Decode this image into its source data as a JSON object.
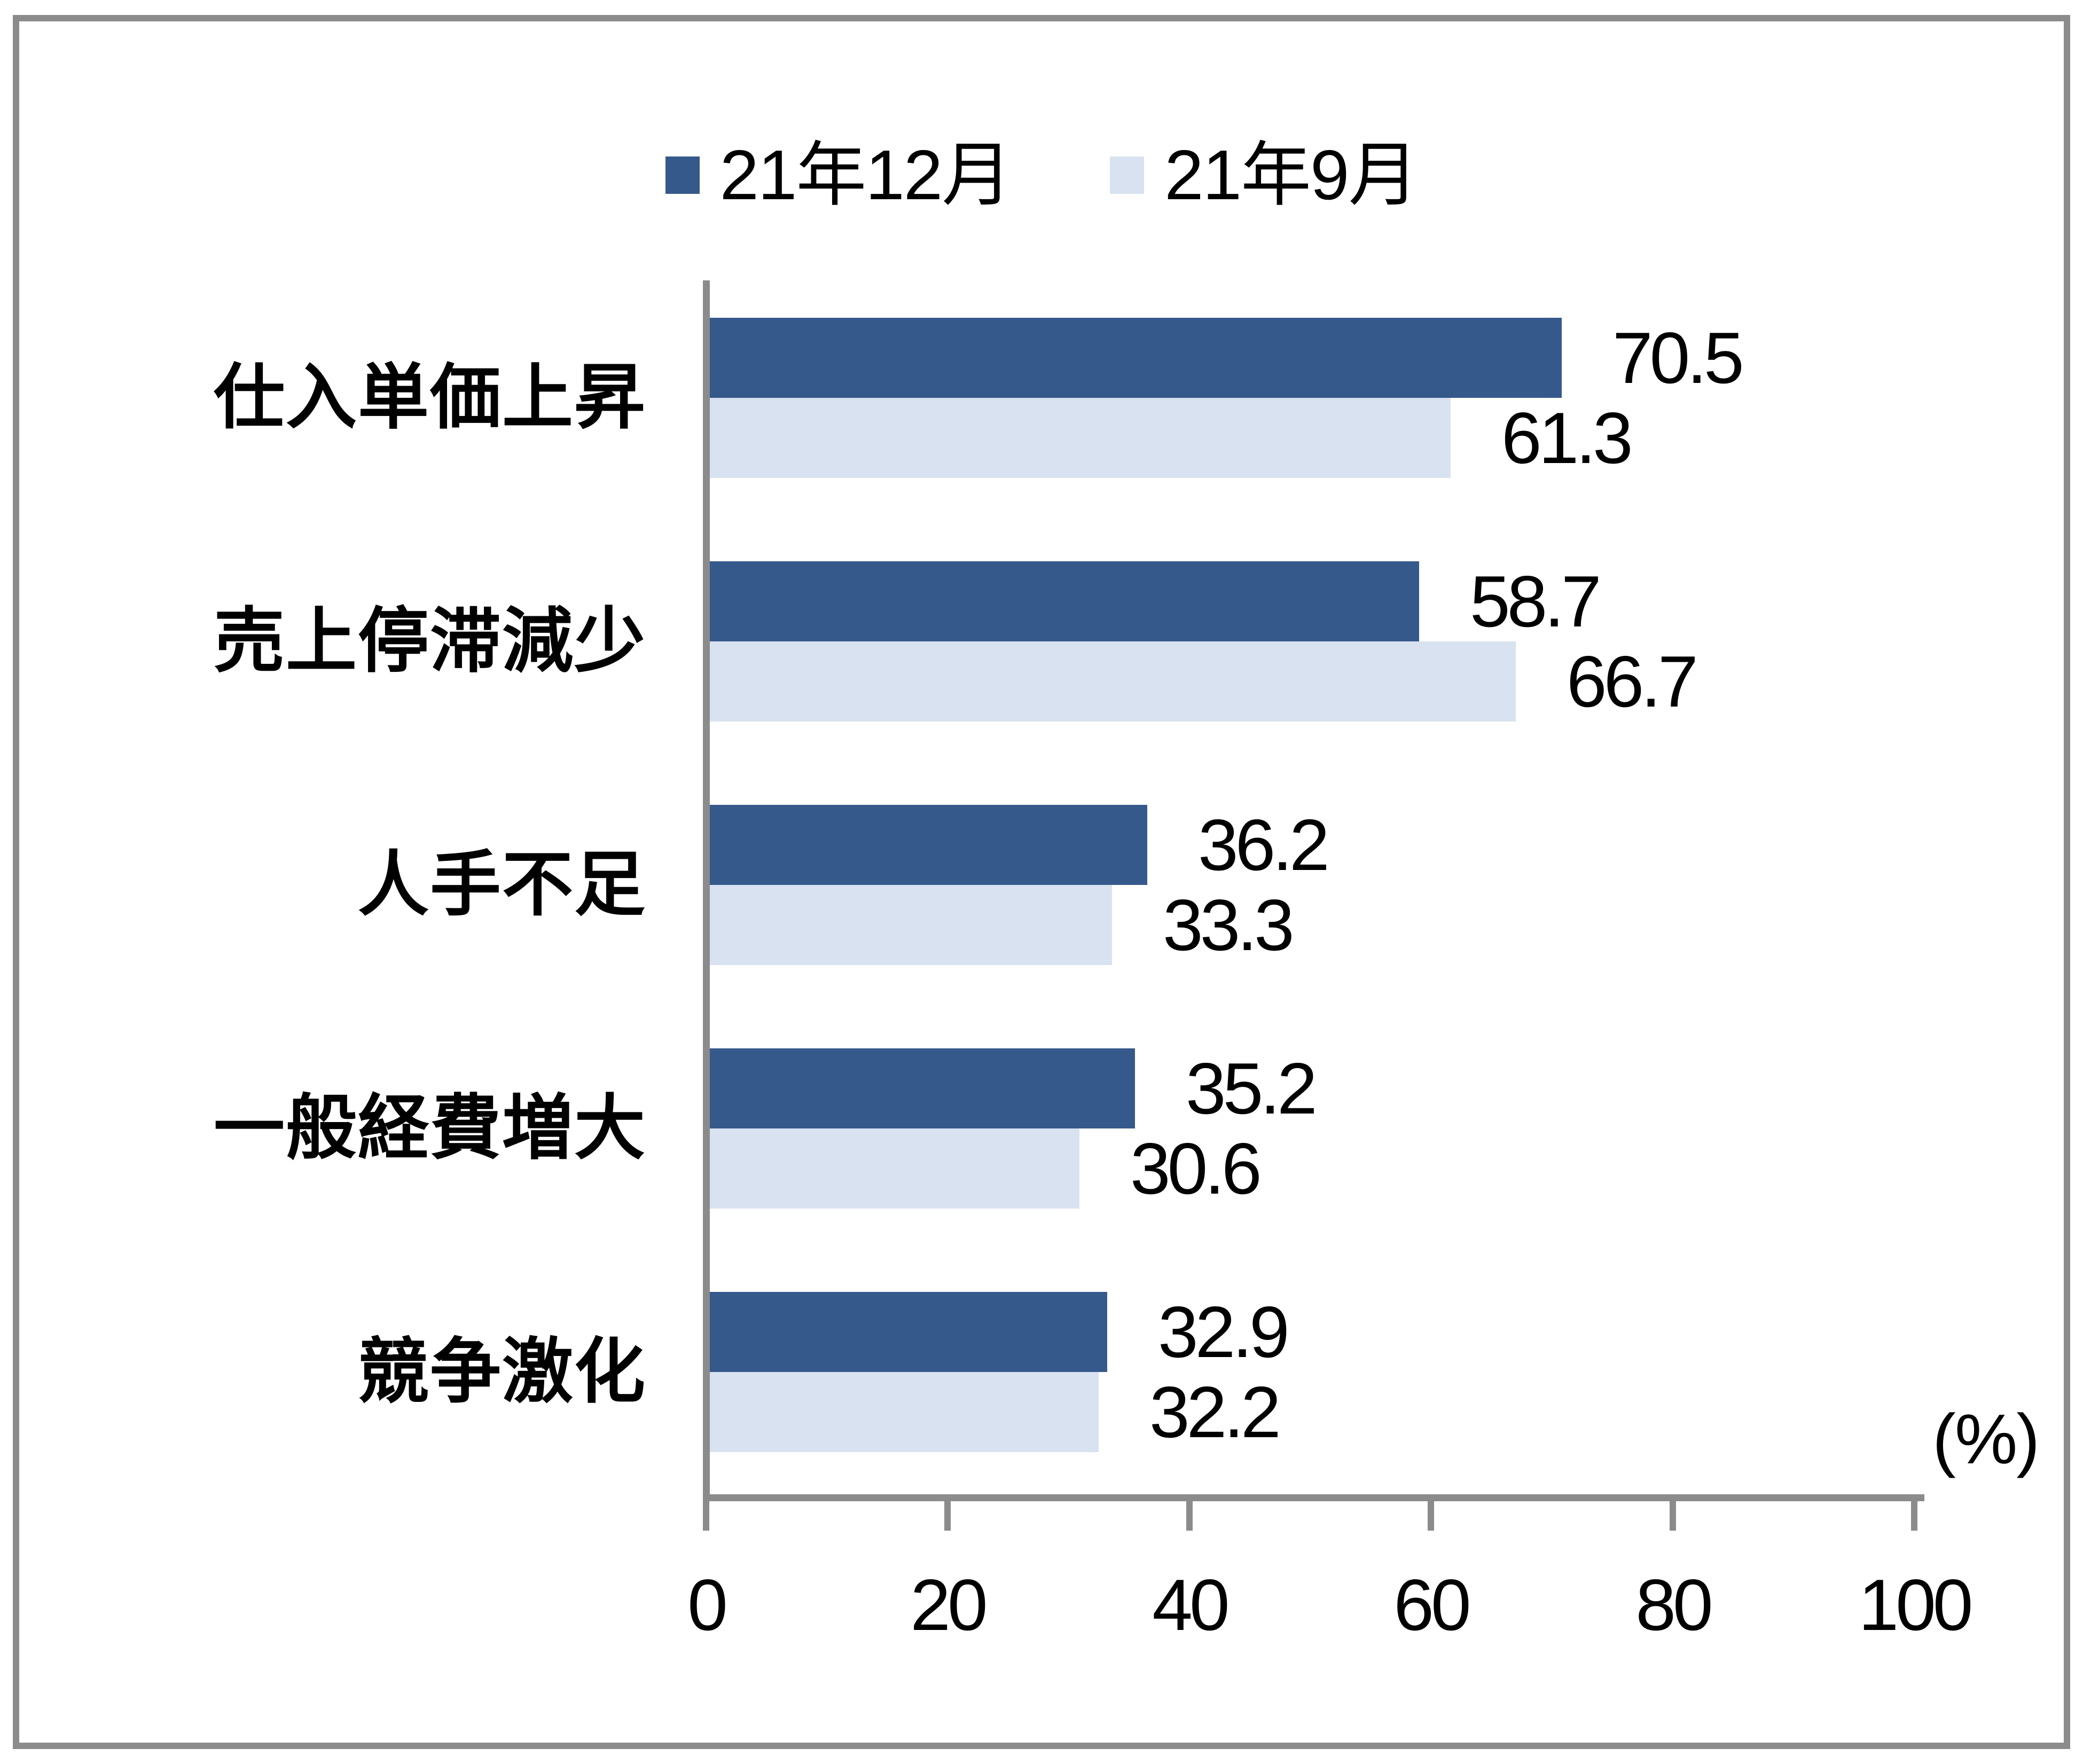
{
  "legend": {
    "items": [
      {
        "label": "21年12月",
        "color": "#36598C"
      },
      {
        "label": "21年9月",
        "color": "#D9E2F0"
      }
    ]
  },
  "axis": {
    "tick_labels": [
      "0",
      "20",
      "40",
      "60",
      "80",
      "100"
    ],
    "unit_label": "(%)",
    "line_color": "#8b8b8b"
  },
  "chart_data": {
    "type": "bar",
    "orientation": "horizontal",
    "title": "",
    "categories": [
      "仕入単価上昇",
      "売上停滞減少",
      "人手不足",
      "一般経費増大",
      "競争激化"
    ],
    "series": [
      {
        "name": "21年12月",
        "color": "#36598C",
        "values": [
          70.5,
          58.7,
          36.2,
          35.2,
          32.9
        ]
      },
      {
        "name": "21年9月",
        "color": "#D9E2F0",
        "values": [
          61.3,
          66.7,
          33.3,
          30.6,
          32.2
        ]
      }
    ],
    "xlim": [
      0,
      100
    ],
    "x_ticks": [
      0,
      20,
      40,
      60,
      80,
      100
    ],
    "xlabel": "(%)",
    "ylabel": "",
    "grid": false,
    "legend_position": "top-center",
    "value_labels": true
  }
}
